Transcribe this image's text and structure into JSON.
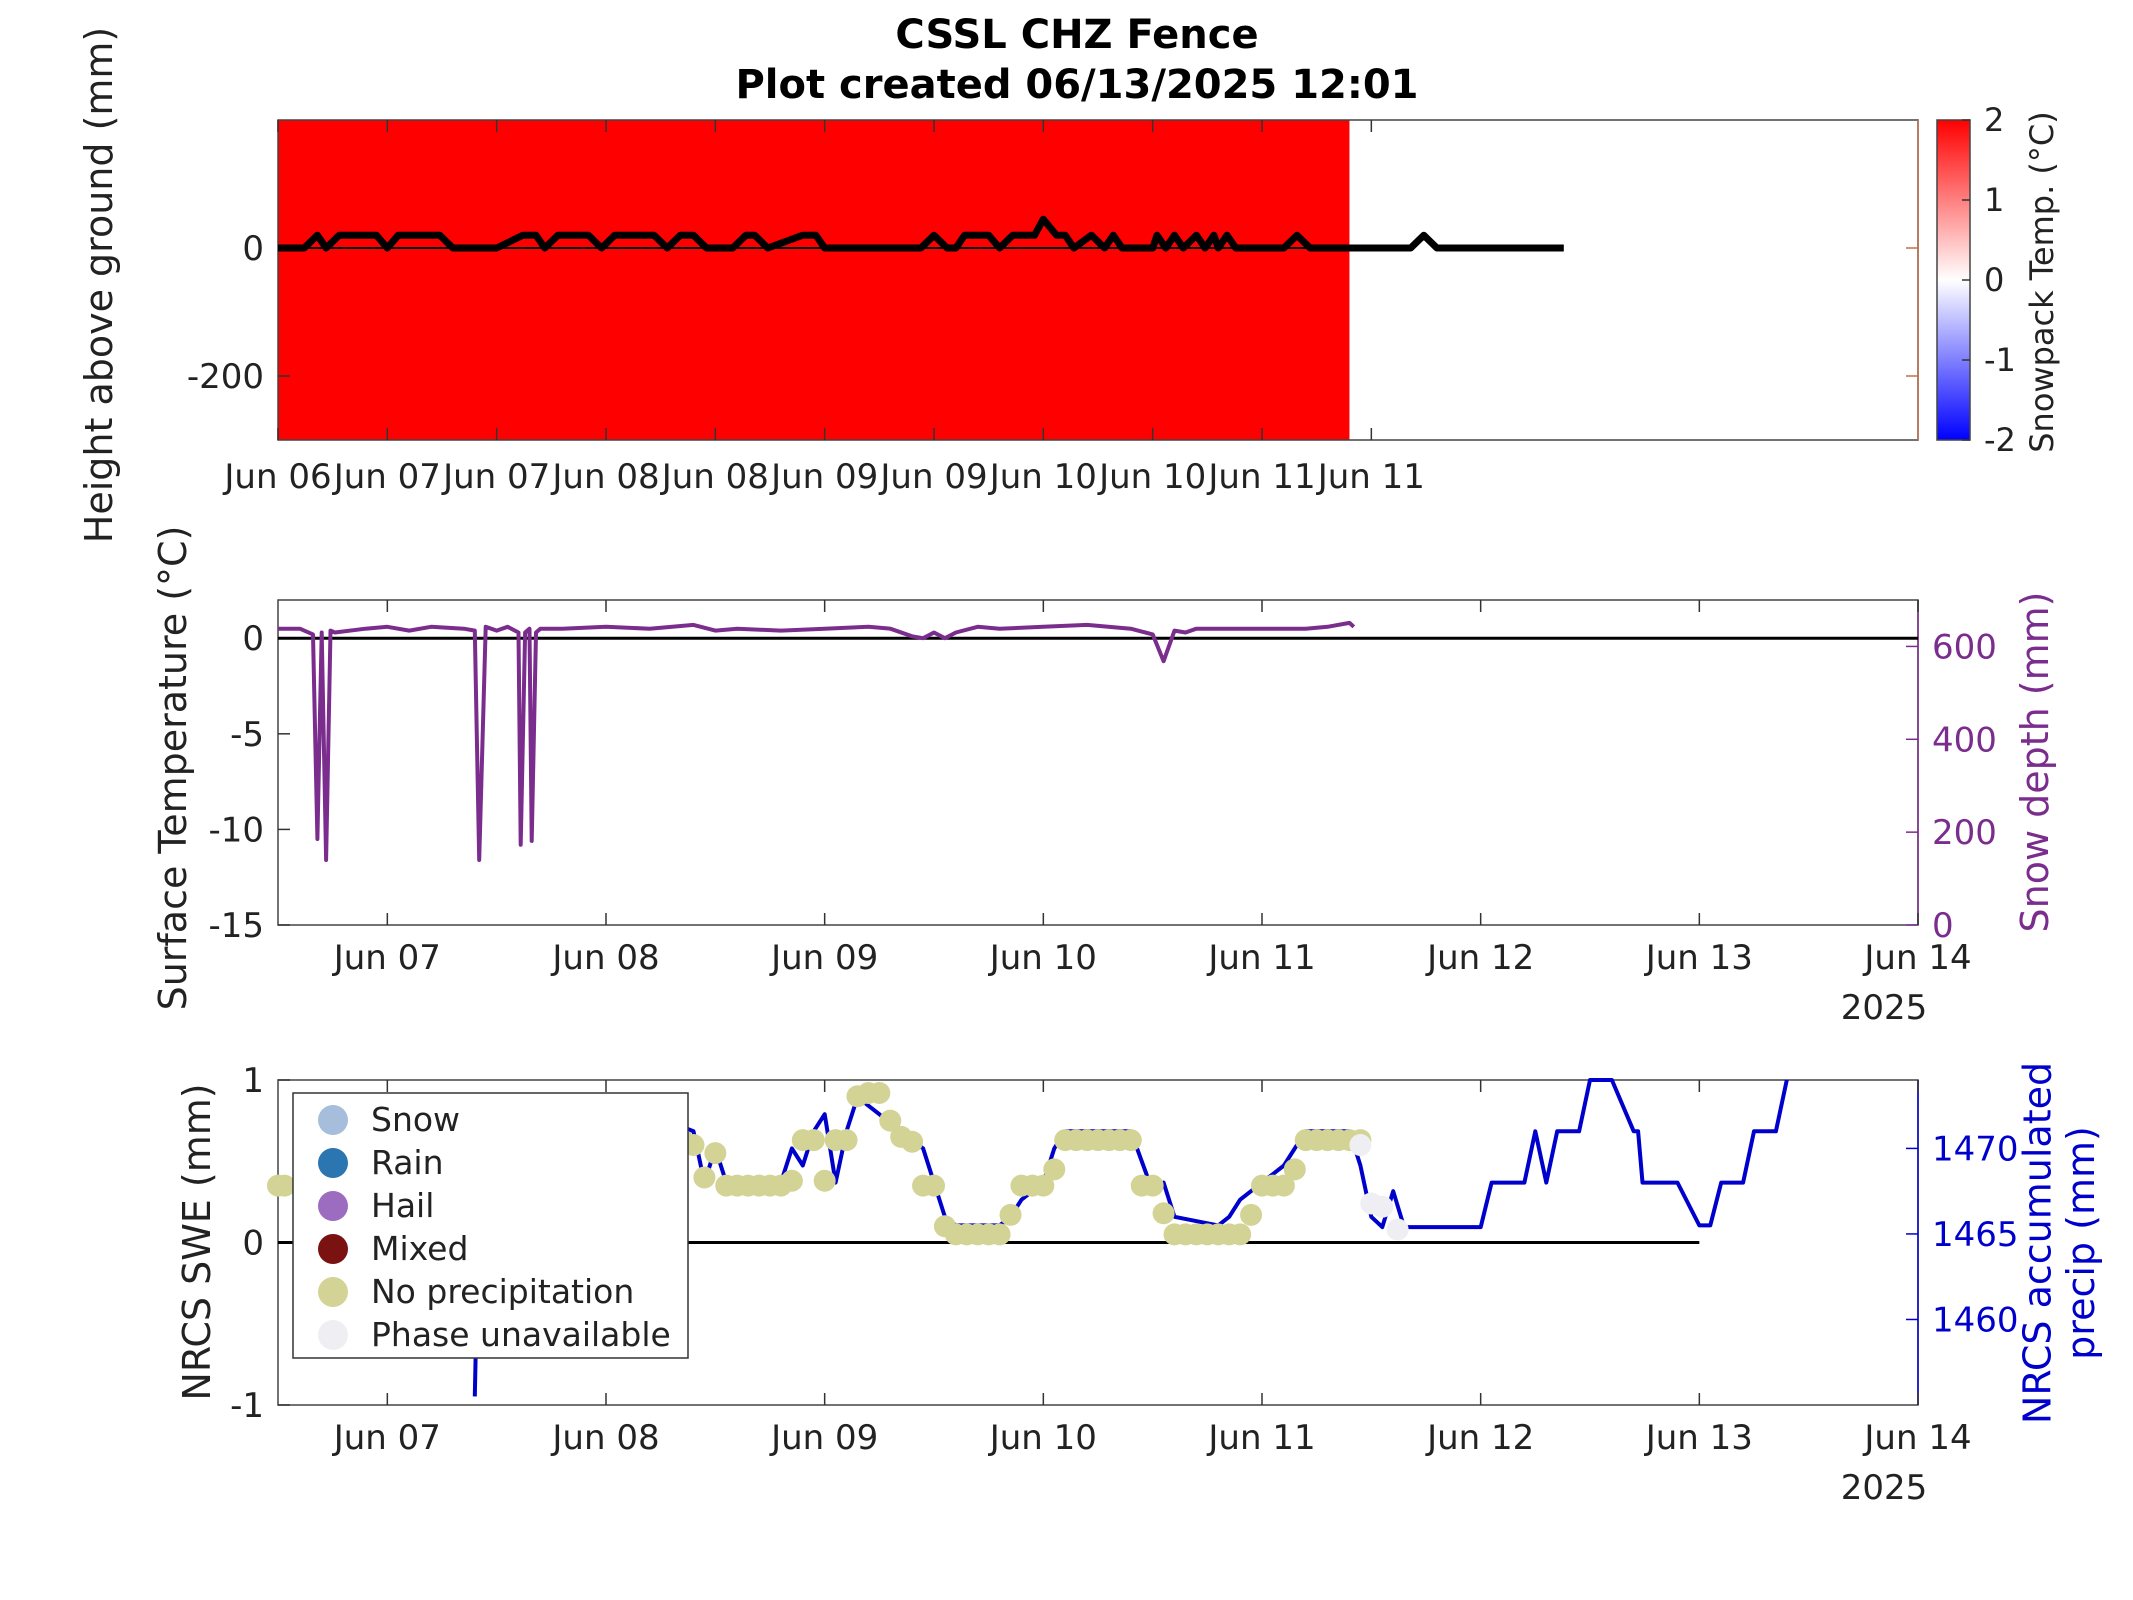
{
  "figure": {
    "title": "CSSL CHZ Fence",
    "subtitle": "Plot created 06/13/2025 12:01"
  },
  "colors": {
    "snowpack_red": "#ff0000",
    "surface_temp": "#7b2d8e",
    "snow_depth_axis": "#7b2d8e",
    "precip": "#0000cc",
    "no_precip": "#d3d396",
    "phase_unavailable": "#efeff3",
    "zero_line": "#000000",
    "right_axis_1": "#c07050"
  },
  "chart_data": [
    {
      "type": "heatmap",
      "ylabel": "Height above ground (mm)",
      "yticks": [
        0,
        -200
      ],
      "ylim": [
        -300,
        200
      ],
      "xticks": [
        "Jun 06",
        "Jun 07",
        "Jun 07",
        "Jun 08",
        "Jun 08",
        "Jun 09",
        "Jun 09",
        "Jun 10",
        "Jun 10",
        "Jun 11",
        "Jun 11"
      ],
      "xlim_days": [
        6.0,
        13.5
      ],
      "colorbar": {
        "label": "Snowpack Temp. (°C)",
        "ticks": [
          2,
          1,
          0,
          -1,
          -2
        ],
        "range": [
          -2,
          2
        ]
      },
      "heat_region": {
        "x_start_day": 6.0,
        "x_end_day": 10.9,
        "value": 2
      },
      "snow_height_line": {
        "x_days": [
          6.0,
          6.12,
          6.18,
          6.22,
          6.28,
          6.45,
          6.5,
          6.55,
          6.74,
          6.8,
          6.92,
          7.0,
          7.12,
          7.18,
          7.22,
          7.28,
          7.42,
          7.48,
          7.54,
          7.72,
          7.78,
          7.84,
          7.9,
          7.96,
          8.0,
          8.08,
          8.14,
          8.18,
          8.24,
          8.4,
          8.46,
          8.5,
          8.94,
          9.0,
          9.06,
          9.1,
          9.14,
          9.25,
          9.3,
          9.36,
          9.46,
          9.5,
          9.56,
          9.6,
          9.64,
          9.72,
          9.78,
          9.82,
          9.86,
          9.9,
          10.0,
          10.02,
          10.06,
          10.1,
          10.14,
          10.2,
          10.24,
          10.28,
          10.3,
          10.34,
          10.38,
          10.42,
          10.46,
          10.6,
          10.66,
          10.72,
          10.78,
          11.18,
          11.24,
          11.3,
          11.76,
          11.82,
          11.88
        ],
        "height_mm": [
          0,
          0,
          20,
          0,
          20,
          20,
          0,
          20,
          20,
          0,
          0,
          0,
          20,
          20,
          0,
          20,
          20,
          0,
          20,
          20,
          0,
          20,
          20,
          0,
          0,
          0,
          20,
          20,
          0,
          20,
          20,
          0,
          0,
          20,
          0,
          0,
          20,
          20,
          0,
          20,
          20,
          45,
          20,
          20,
          0,
          20,
          0,
          20,
          0,
          0,
          0,
          20,
          0,
          20,
          0,
          20,
          0,
          20,
          0,
          20,
          0,
          0,
          0,
          0,
          20,
          0,
          0,
          0,
          20,
          0,
          0,
          0,
          0
        ]
      }
    },
    {
      "type": "line",
      "ylabel": "Surface Temperature (°C)",
      "ylabel_right": "Snow depth (mm)",
      "yticks_left": [
        0,
        -5,
        -10,
        -15
      ],
      "yticks_right": [
        600,
        400,
        200,
        0
      ],
      "ylim_left": [
        -15,
        2
      ],
      "ylim_right": [
        0,
        700
      ],
      "xlim_days": [
        6.5,
        14.0
      ],
      "xticks": [
        "Jun 07",
        "Jun 08",
        "Jun 09",
        "Jun 10",
        "Jun 11",
        "Jun 12",
        "Jun 13",
        "Jun 14"
      ],
      "xyear": "2025",
      "zero_line_end_day": 14.0,
      "series": [
        {
          "axis": "left",
          "x_days": [
            6.5,
            6.6,
            6.66,
            6.68,
            6.7,
            6.72,
            6.74,
            6.76,
            6.9,
            7.0,
            7.1,
            7.2,
            7.35,
            7.4,
            7.42,
            7.45,
            7.5,
            7.55,
            7.6,
            7.61,
            7.63,
            7.65,
            7.66,
            7.68,
            7.7,
            7.8,
            8.0,
            8.2,
            8.4,
            8.5,
            8.6,
            8.8,
            9.0,
            9.2,
            9.3,
            9.4,
            9.45,
            9.5,
            9.55,
            9.6,
            9.7,
            9.8,
            10.0,
            10.2,
            10.4,
            10.5,
            10.55,
            10.6,
            10.65,
            10.7,
            10.8,
            11.0,
            11.2,
            11.3,
            11.4,
            11.42
          ],
          "y": [
            0.5,
            0.5,
            0.2,
            -10.5,
            0.3,
            -11.6,
            0.4,
            0.3,
            0.5,
            0.6,
            0.4,
            0.6,
            0.5,
            0.4,
            -11.6,
            0.6,
            0.4,
            0.6,
            0.3,
            -10.8,
            0.3,
            0.5,
            -10.6,
            0.3,
            0.5,
            0.5,
            0.6,
            0.5,
            0.7,
            0.4,
            0.5,
            0.4,
            0.5,
            0.6,
            0.5,
            0.1,
            0.0,
            0.3,
            0.0,
            0.3,
            0.6,
            0.5,
            0.6,
            0.7,
            0.5,
            0.2,
            -1.2,
            0.4,
            0.3,
            0.5,
            0.5,
            0.5,
            0.5,
            0.6,
            0.8,
            0.6
          ]
        }
      ]
    },
    {
      "type": "scatter",
      "ylabel": "NRCS SWE (mm)",
      "ylabel_right": "NRCS accumulated precip (mm)",
      "yticks_left": [
        1,
        0,
        -1
      ],
      "yticks_right": [
        1470,
        1465,
        1460
      ],
      "ylim_left": [
        -1,
        1
      ],
      "ylim_right": [
        1455,
        1474
      ],
      "xlim_days": [
        6.5,
        14.0
      ],
      "xticks": [
        "Jun 07",
        "Jun 08",
        "Jun 09",
        "Jun 10",
        "Jun 11",
        "Jun 12",
        "Jun 13",
        "Jun 14"
      ],
      "xyear": "2025",
      "zero_line_end_day": 13.0,
      "legend": {
        "placement": "top-left",
        "entries": [
          {
            "label": "Snow",
            "color": "#a6bddb"
          },
          {
            "label": "Rain",
            "color": "#2b75b0"
          },
          {
            "label": "Hail",
            "color": "#9b6cbf"
          },
          {
            "label": "Mixed",
            "color": "#7a1212"
          },
          {
            "label": "No precipitation",
            "color": "#d3d396"
          },
          {
            "label": "Phase unavailable",
            "color": "#efeff3"
          }
        ]
      },
      "precip_line": {
        "x_days": [
          7.4,
          7.42,
          7.44,
          7.6,
          7.8,
          8.0,
          8.2,
          8.3,
          8.4,
          8.45,
          8.5,
          8.55,
          8.6,
          8.7,
          8.8,
          8.85,
          8.9,
          8.95,
          9.0,
          9.05,
          9.1,
          9.15,
          9.2,
          9.3,
          9.4,
          9.45,
          9.5,
          9.55,
          9.6,
          9.8,
          9.85,
          9.9,
          10.0,
          10.05,
          10.1,
          10.2,
          10.3,
          10.4,
          10.5,
          10.55,
          10.6,
          10.8,
          10.85,
          10.9,
          11.0,
          11.1,
          11.2,
          11.4,
          11.45,
          11.5,
          11.55,
          11.6,
          11.65,
          11.7,
          11.8,
          11.85,
          11.9,
          12.0,
          12.05,
          12.1,
          12.15,
          12.2,
          12.25,
          12.3,
          12.35,
          12.4,
          12.45,
          12.5,
          12.6,
          12.7,
          12.72,
          12.74,
          12.76,
          12.78,
          12.8,
          12.9,
          13.0,
          13.05,
          13.1,
          13.2,
          13.25,
          13.3,
          13.35,
          13.4
        ],
        "precip_mm": [
          1455.5,
          1468,
          1473,
          1471,
          1470.5,
          1468.5,
          1468,
          1471.5,
          1471,
          1468,
          1470,
          1468,
          1467.5,
          1467.5,
          1468,
          1470,
          1469,
          1471,
          1472,
          1468,
          1471,
          1473,
          1472.5,
          1471.5,
          1470.5,
          1470,
          1468,
          1466,
          1465.5,
          1465.5,
          1466,
          1467,
          1468,
          1470,
          1471,
          1471,
          1471,
          1471,
          1467.5,
          1468,
          1466,
          1465.5,
          1466,
          1467,
          1468,
          1469,
          1471,
          1471,
          1469,
          1466,
          1465.4,
          1467.5,
          1465.4,
          1465.4,
          1465.4,
          1465.4,
          1465.4,
          1465.4,
          1468,
          1468,
          1468,
          1468,
          1471,
          1468,
          1471,
          1471,
          1471,
          1474,
          1474,
          1471,
          1471,
          1468,
          1468,
          1468,
          1468,
          1468,
          1465.5,
          1465.5,
          1468,
          1468,
          1471,
          1471,
          1471,
          1474
        ]
      },
      "no_precip_points": {
        "x_days": [
          6.5,
          6.53,
          8.35,
          8.4,
          8.45,
          8.5,
          8.55,
          8.6,
          8.65,
          8.7,
          8.75,
          8.8,
          8.85,
          8.9,
          8.95,
          9.0,
          9.05,
          9.1,
          9.15,
          9.2,
          9.25,
          9.3,
          9.35,
          9.4,
          9.45,
          9.5,
          9.55,
          9.6,
          9.65,
          9.7,
          9.75,
          9.8,
          9.85,
          9.9,
          9.95,
          10.0,
          10.05,
          10.1,
          10.15,
          10.2,
          10.25,
          10.3,
          10.35,
          10.4,
          10.45,
          10.5,
          10.55,
          10.6,
          10.65,
          10.7,
          10.75,
          10.8,
          10.85,
          10.9,
          10.95,
          11.0,
          11.05,
          11.1,
          11.15,
          11.2,
          11.25,
          11.3,
          11.35,
          11.4,
          11.45
        ],
        "swe_mm": [
          0.35,
          0.35,
          0.63,
          0.6,
          0.4,
          0.55,
          0.35,
          0.35,
          0.35,
          0.35,
          0.35,
          0.35,
          0.38,
          0.63,
          0.63,
          0.38,
          0.63,
          0.63,
          0.9,
          0.92,
          0.92,
          0.75,
          0.65,
          0.62,
          0.35,
          0.35,
          0.1,
          0.05,
          0.05,
          0.05,
          0.05,
          0.05,
          0.17,
          0.35,
          0.35,
          0.35,
          0.45,
          0.63,
          0.63,
          0.63,
          0.63,
          0.63,
          0.63,
          0.63,
          0.35,
          0.35,
          0.18,
          0.05,
          0.05,
          0.05,
          0.05,
          0.05,
          0.05,
          0.05,
          0.17,
          0.35,
          0.35,
          0.35,
          0.45,
          0.63,
          0.63,
          0.63,
          0.63,
          0.63,
          0.63
        ]
      },
      "phase_unavailable_points": {
        "x_days": [
          11.45,
          11.5,
          11.55,
          11.62
        ],
        "swe_mm": [
          0.6,
          0.24,
          0.22,
          0.08
        ]
      }
    }
  ]
}
